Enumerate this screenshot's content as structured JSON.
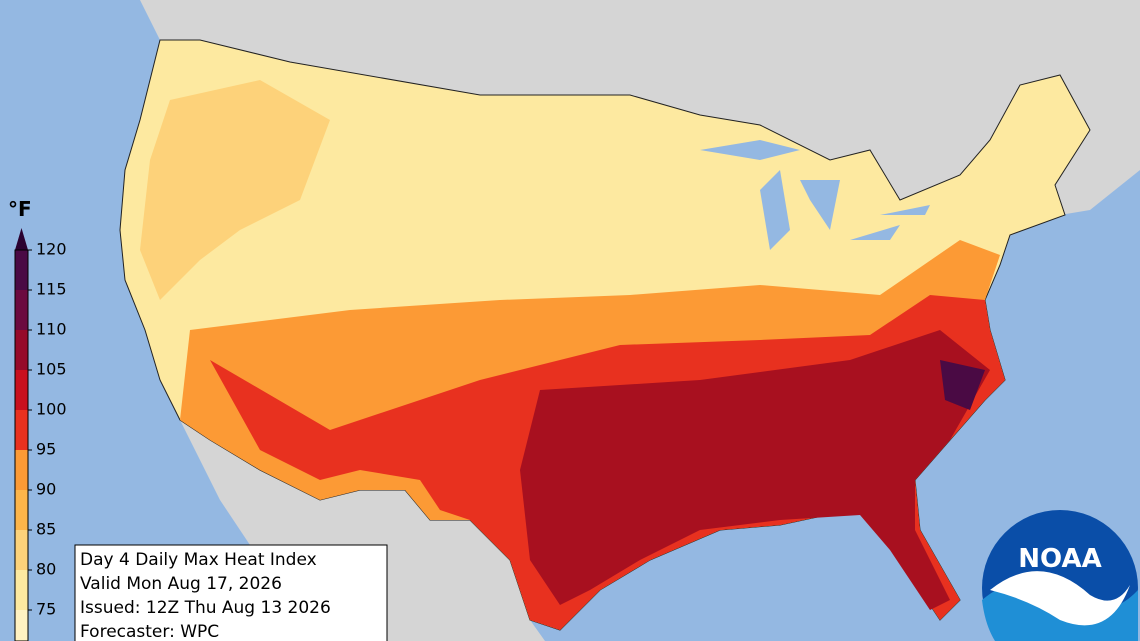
{
  "title_lines": [
    "Day 4 Daily Max Heat Index",
    "Valid Mon Aug 17, 2026",
    "Issued: 12Z Thu Aug 13 2026",
    "Forecaster: WPC"
  ],
  "legend": {
    "unit": "°F",
    "ticks": [
      75,
      80,
      85,
      90,
      95,
      100,
      105,
      110,
      115,
      120
    ],
    "colors": [
      "#fde9a0",
      "#fdd27a",
      "#fdb54a",
      "#fc9a35",
      "#e8311f",
      "#c8101e",
      "#960a2a",
      "#6b0a3f",
      "#4a0a44"
    ],
    "under_color": "#fff2c2",
    "over_color": "#2b0230"
  },
  "logo": "NOAA"
}
